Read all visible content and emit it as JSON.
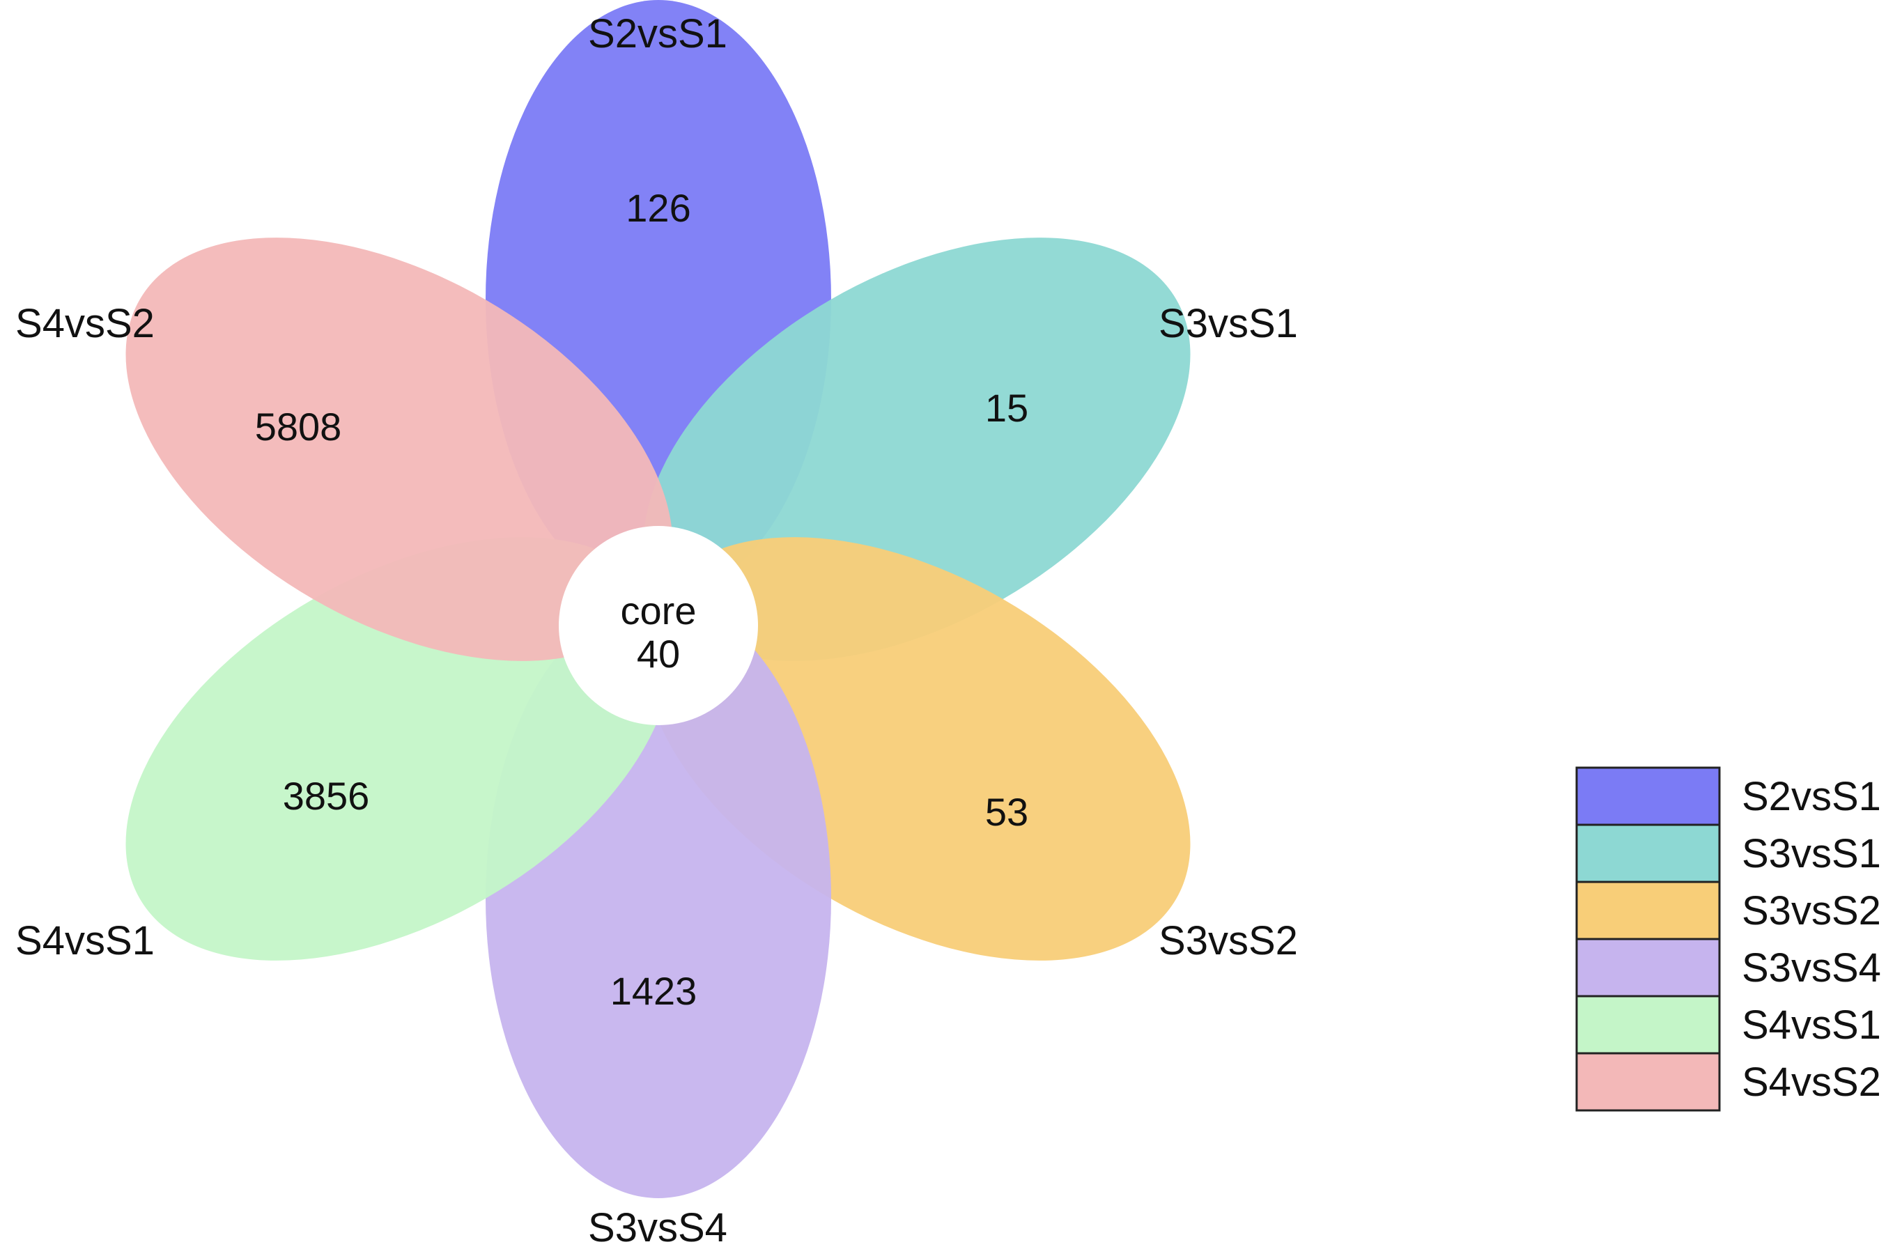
{
  "core": {
    "label": "core",
    "value": "40"
  },
  "petals": [
    {
      "name": "S2vsS1",
      "count": "126",
      "color": "#7b7bf5"
    },
    {
      "name": "S3vsS1",
      "count": "15",
      "color": "#8dd8d3"
    },
    {
      "name": "S3vsS2",
      "count": "53",
      "color": "#f8ce78"
    },
    {
      "name": "S3vsS4",
      "count": "1423",
      "color": "#c6b4ee"
    },
    {
      "name": "S4vsS1",
      "count": "3856",
      "color": "#c4f5c8"
    },
    {
      "name": "S4vsS2",
      "count": "5808",
      "color": "#f3b8b8"
    }
  ],
  "legend": {
    "items": [
      {
        "label": "S2vsS1",
        "color": "#7b7bf5"
      },
      {
        "label": "S3vsS1",
        "color": "#8dd8d3"
      },
      {
        "label": "S3vsS2",
        "color": "#f8ce78"
      },
      {
        "label": "S3vsS4",
        "color": "#c6b4ee"
      },
      {
        "label": "S4vsS1",
        "color": "#c4f5c8"
      },
      {
        "label": "S4vsS2",
        "color": "#f3b8b8"
      }
    ]
  }
}
